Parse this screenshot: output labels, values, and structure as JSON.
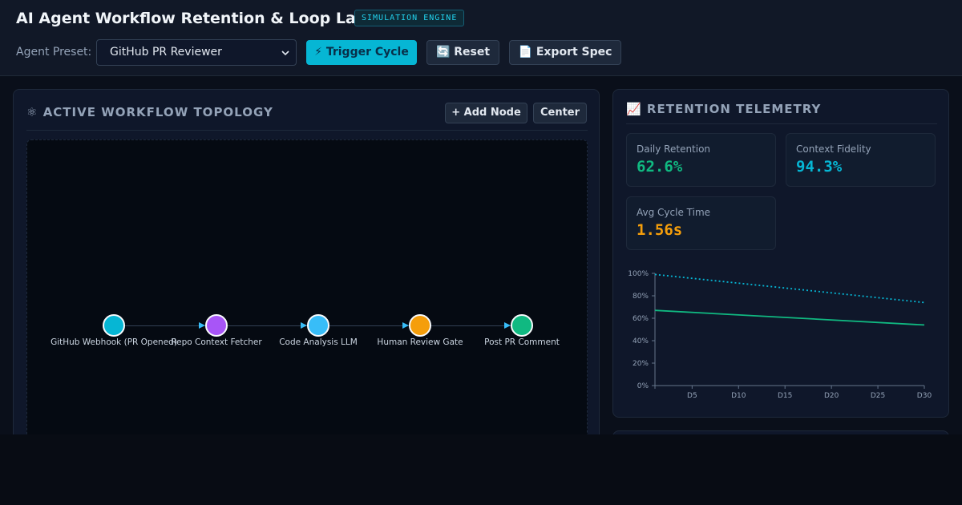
{
  "header": {
    "title": "AI Agent Workflow Retention & Loop Lab",
    "badge": "SIMULATION ENGINE",
    "preset_label": "Agent Preset:",
    "preset_value": "GitHub PR Reviewer",
    "trigger_label": "⚡ Trigger Cycle",
    "reset_label": "🔄 Reset",
    "export_label": "📄 Export Spec"
  },
  "topology": {
    "title_icon": "⚛",
    "title": "ACTIVE WORKFLOW TOPOLOGY",
    "add_node_label": "+ Add Node",
    "center_label": "Center",
    "nodes": [
      {
        "label": "GitHub Webhook (PR Opened)",
        "color": "#06b6d4"
      },
      {
        "label": "Repo Context Fetcher",
        "color": "#a855f7"
      },
      {
        "label": "Code Analysis LLM",
        "color": "#38bdf8"
      },
      {
        "label": "Human Review Gate",
        "color": "#f59e0b"
      },
      {
        "label": "Post PR Comment",
        "color": "#10b981"
      }
    ]
  },
  "telemetry": {
    "title_icon": "📈",
    "title": "RETENTION TELEMETRY",
    "metrics": [
      {
        "label": "Daily Retention",
        "value": "62.6%",
        "color": "#10b981"
      },
      {
        "label": "Context Fidelity",
        "value": "94.3%",
        "color": "#06b6d4"
      },
      {
        "label": "Avg Cycle Time",
        "value": "1.56s",
        "color": "#f59e0b"
      }
    ]
  },
  "chart_data": {
    "type": "line",
    "x": [
      1,
      30
    ],
    "xlim": [
      1,
      30
    ],
    "ylim": [
      0,
      100
    ],
    "y_ticks": [
      "0%",
      "20%",
      "40%",
      "60%",
      "80%",
      "100%"
    ],
    "x_ticks": [
      {
        "value": 5,
        "label": "D5"
      },
      {
        "value": 10,
        "label": "D10"
      },
      {
        "value": 15,
        "label": "D15"
      },
      {
        "value": 20,
        "label": "D20"
      },
      {
        "value": 25,
        "label": "D25"
      },
      {
        "value": 30,
        "label": "D30"
      }
    ],
    "grid": false,
    "series": [
      {
        "style": "dotted",
        "color": "#06b6d4",
        "x": [
          1,
          30
        ],
        "values": [
          99,
          74
        ]
      },
      {
        "style": "solid",
        "color": "#10b981",
        "x": [
          1,
          30
        ],
        "values": [
          67,
          54
        ]
      }
    ]
  }
}
